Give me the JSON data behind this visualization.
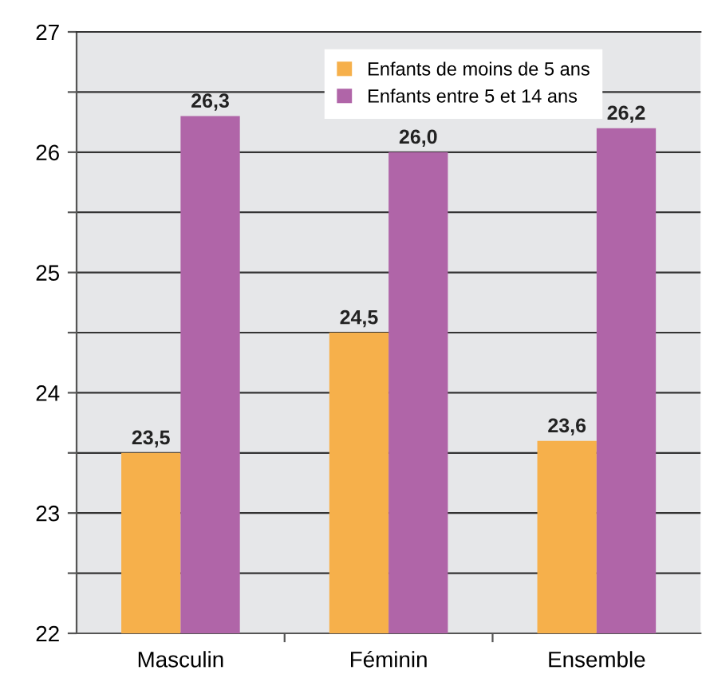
{
  "chart_data": {
    "type": "bar",
    "categories": [
      "Masculin",
      "Féminin",
      "Ensemble"
    ],
    "series": [
      {
        "name": "Enfants de moins de 5 ans",
        "color": "#f6b04b",
        "values": [
          23.5,
          24.5,
          23.6
        ],
        "value_labels": [
          "23,5",
          "24,5",
          "23,6"
        ]
      },
      {
        "name": "Enfants entre 5 et 14 ans",
        "color": "#b065a8",
        "values": [
          26.3,
          26.0,
          26.2
        ],
        "value_labels": [
          "26,3",
          "26,0",
          "26,2"
        ]
      }
    ],
    "ylim": [
      22,
      27
    ],
    "yticks": [
      22,
      {
        "value": 22.5,
        "label": null
      },
      23,
      {
        "value": 23.5,
        "label": null
      },
      24,
      {
        "value": 24.5,
        "label": null
      },
      25,
      {
        "value": 25.5,
        "label": null
      },
      26,
      {
        "value": 26.5,
        "label": null
      },
      27
    ],
    "grid": "y",
    "legend": "top"
  }
}
